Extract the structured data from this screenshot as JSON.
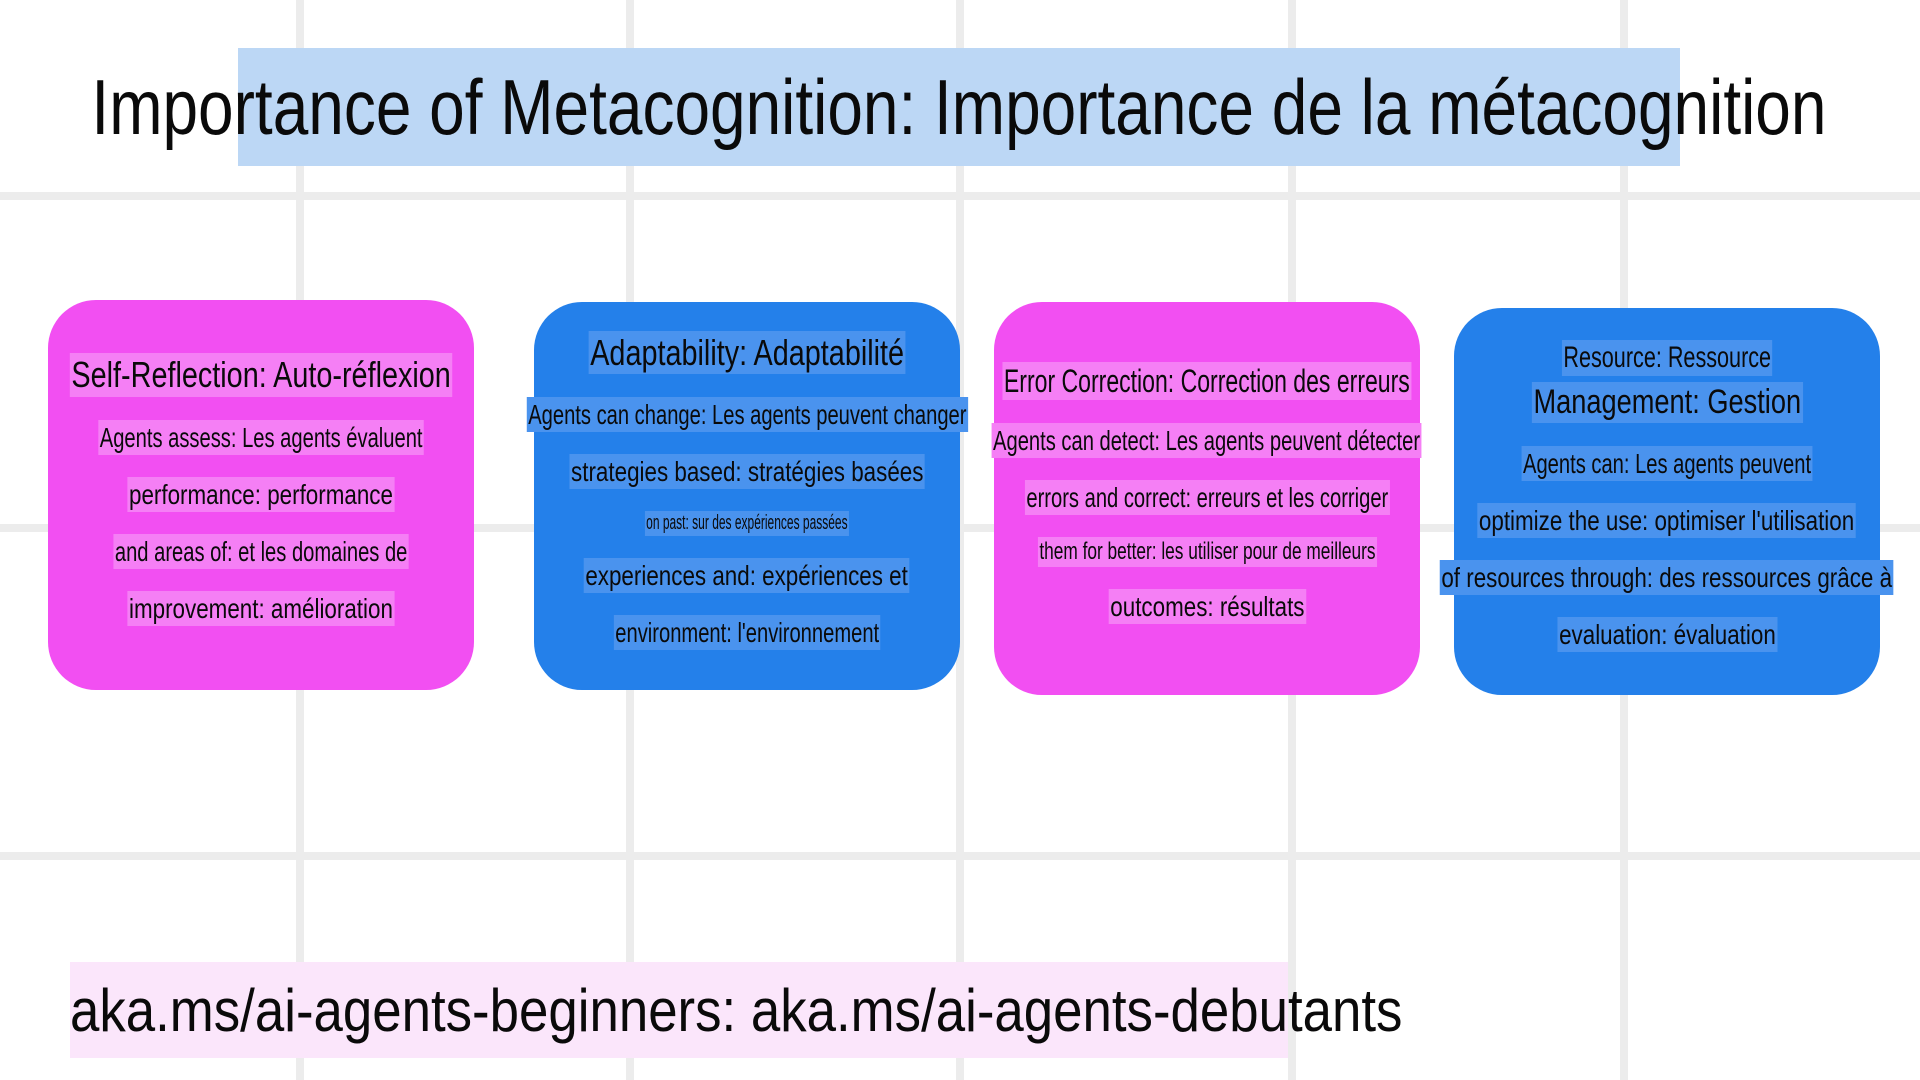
{
  "title": "Importance of Metacognition: Importance de la métacognition",
  "colors": {
    "pink": "#f24ff2",
    "blue": "#2480ea",
    "title_bg": "#bcd7f5",
    "footer_bg": "#fbe6fb",
    "grid": "#ececec"
  },
  "cards": [
    {
      "title": "Self-Reflection: Auto-réflexion",
      "lines": [
        "Agents assess: Les agents évaluent",
        "performance: performance",
        "and areas of: et les domaines de",
        "improvement: amélioration"
      ]
    },
    {
      "title": "Adaptability: Adaptabilité",
      "lines": [
        "Agents can change: Les agents peuvent changer",
        "strategies based: stratégies basées",
        "on past: sur des expériences passées",
        "experiences and: expériences et",
        "environment: l'environnement"
      ]
    },
    {
      "title": "Error Correction: Correction des erreurs",
      "lines": [
        "Agents can detect: Les agents peuvent détecter",
        "errors and correct: erreurs et les corriger",
        "them for better: les utiliser pour de meilleurs",
        "outcomes: résultats"
      ]
    },
    {
      "title": "Resource: Ressource",
      "subtitle": "Management: Gestion",
      "lines": [
        "Agents can: Les agents peuvent",
        "optimize the use: optimiser l'utilisation",
        "of resources through: des ressources grâce à",
        "evaluation: évaluation"
      ]
    }
  ],
  "footer": "aka.ms/ai-agents-beginners: aka.ms/ai-agents-debutants"
}
